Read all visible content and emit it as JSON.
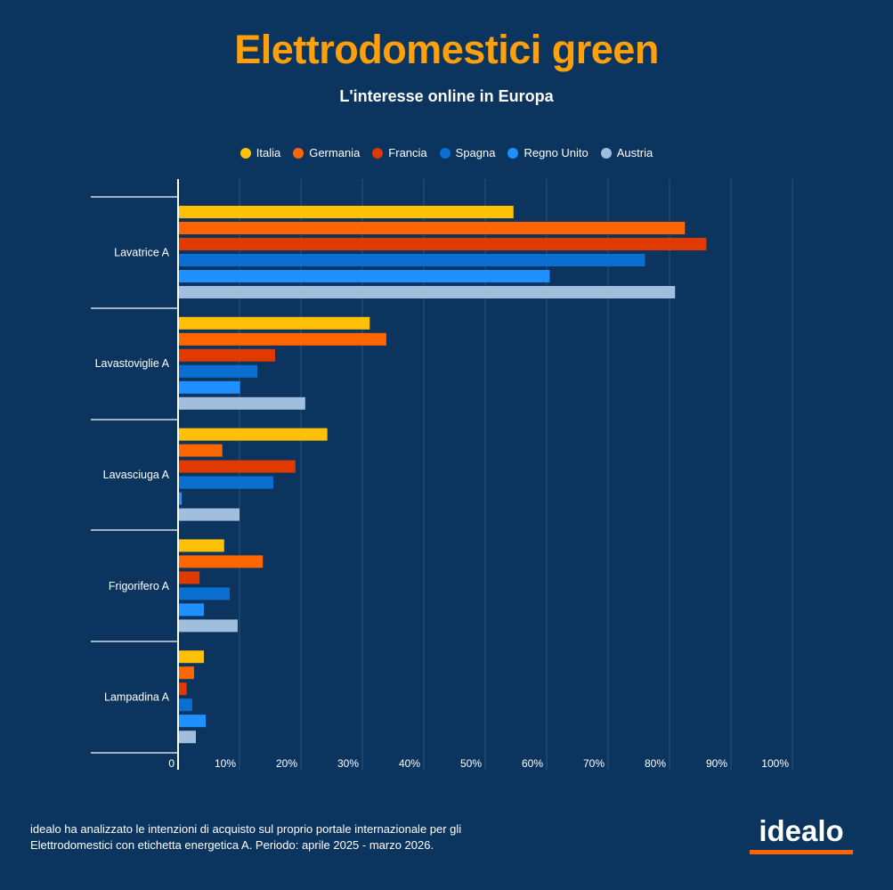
{
  "header": {
    "title": "Elettrodomestici green",
    "subtitle": "L'interesse online in Europa"
  },
  "footer": {
    "line1": "idealo ha analizzato le intenzioni di acquisto sul proprio portale internazionale per gli",
    "line2": "Elettrodomestici con etichetta energetica A. Periodo: aprile 2025 - marzo 2026."
  },
  "logo": {
    "text": "idealo",
    "accent_color": "#ff6600"
  },
  "chart_data": {
    "type": "bar",
    "orientation": "horizontal",
    "title": "Elettrodomestici green",
    "subtitle": "L'interesse online in Europa",
    "xlabel": "",
    "ylabel": "",
    "xlim": [
      0,
      100
    ],
    "grid": true,
    "legend": "top-center",
    "categories": [
      "Lavatrice A",
      "Lavastoviglie A",
      "Lavasciuga A",
      "Frigorifero A",
      "Lampadina A"
    ],
    "x_ticks": [
      "0",
      "10%",
      "20%",
      "30%",
      "40%",
      "50%",
      "60%",
      "70%",
      "80%",
      "90%",
      "100%"
    ],
    "series": [
      {
        "name": "Italia",
        "color": "#ffc107",
        "values": [
          54.6,
          31.2,
          24.3,
          7.5,
          4.2
        ]
      },
      {
        "name": "Germania",
        "color": "#ff6600",
        "values": [
          82.5,
          33.9,
          7.2,
          13.8,
          2.6
        ]
      },
      {
        "name": "Francia",
        "color": "#e03a00",
        "values": [
          86.0,
          15.8,
          19.1,
          3.5,
          1.4
        ]
      },
      {
        "name": "Spagna",
        "color": "#0a6fd0",
        "values": [
          76.0,
          12.9,
          15.5,
          8.4,
          2.3
        ]
      },
      {
        "name": "Regno Unito",
        "color": "#1e90ff",
        "values": [
          60.5,
          10.1,
          0.6,
          4.2,
          4.5
        ]
      },
      {
        "name": "Austria",
        "color": "#a2bedd",
        "values": [
          80.9,
          20.7,
          10.0,
          9.7,
          2.9
        ]
      }
    ]
  }
}
